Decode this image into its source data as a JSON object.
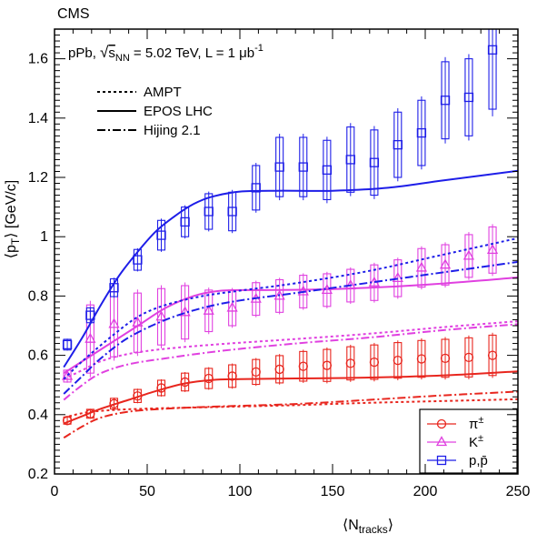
{
  "chart_data": {
    "type": "scatter",
    "experiment": "CMS",
    "header_prefix": "pPb, ",
    "header_sqrt": "√",
    "header_s": "s",
    "header_sub": "NN",
    "header_rest": " = 5.02 TeV, L = 1 μb",
    "header_sup": "-1",
    "xlabel": {
      "pre": "⟨N",
      "sub": "tracks",
      "post": "⟩"
    },
    "ylabel": {
      "pre": "⟨p",
      "sub": "T",
      "post": "⟩ [GeV/c]"
    },
    "xlim": [
      0,
      250
    ],
    "ylim": [
      0.2,
      1.7
    ],
    "xticks": [
      0,
      50,
      100,
      150,
      200,
      250
    ],
    "xtick_labels": [
      "0",
      "50",
      "100",
      "150",
      "200",
      "250"
    ],
    "yticks": [
      0.2,
      0.4,
      0.6,
      0.8,
      1.0,
      1.2,
      1.4,
      1.6
    ],
    "ytick_labels": [
      "0.2",
      "0.4",
      "0.6",
      "0.8",
      "1",
      "1.2",
      "1.4",
      "1.6"
    ],
    "x": [
      6.9,
      19.3,
      32.1,
      44.8,
      57.6,
      70.4,
      83.2,
      95.9,
      108.7,
      121.4,
      134.2,
      147.0,
      159.7,
      172.5,
      185.2,
      198.0,
      210.8,
      223.5,
      236.3
    ],
    "model_legend": [
      {
        "label": "AMPT",
        "style": "dotted"
      },
      {
        "label": "EPOS LHC",
        "style": "solid"
      },
      {
        "label": "Hijing 2.1",
        "style": "dashdot"
      }
    ],
    "series": [
      {
        "name": "π",
        "name_sup": "±",
        "color": "#e8261e",
        "marker": "circle",
        "values": [
          0.38,
          0.403,
          0.437,
          0.463,
          0.49,
          0.51,
          0.522,
          0.53,
          0.544,
          0.553,
          0.563,
          0.566,
          0.573,
          0.577,
          0.583,
          0.588,
          0.59,
          0.593,
          0.6
        ],
        "syst": [
          0.012,
          0.015,
          0.018,
          0.022,
          0.026,
          0.03,
          0.034,
          0.038,
          0.042,
          0.046,
          0.05,
          0.054,
          0.056,
          0.058,
          0.06,
          0.062,
          0.064,
          0.066,
          0.068
        ],
        "models": {
          "AMPT": [
            [
              5,
              0.39
            ],
            [
              15,
              0.405
            ],
            [
              25,
              0.413
            ],
            [
              40,
              0.418
            ],
            [
              60,
              0.422
            ],
            [
              90,
              0.426
            ],
            [
              130,
              0.432
            ],
            [
              170,
              0.44
            ],
            [
              210,
              0.446
            ],
            [
              250,
              0.452
            ]
          ],
          "EPOS LHC": [
            [
              5,
              0.37
            ],
            [
              15,
              0.395
            ],
            [
              25,
              0.42
            ],
            [
              40,
              0.45
            ],
            [
              55,
              0.48
            ],
            [
              70,
              0.505
            ],
            [
              85,
              0.517
            ],
            [
              100,
              0.52
            ],
            [
              130,
              0.522
            ],
            [
              160,
              0.524
            ],
            [
              190,
              0.528
            ],
            [
              220,
              0.535
            ],
            [
              250,
              0.546
            ]
          ],
          "Hijing 2.1": [
            [
              5,
              0.322
            ],
            [
              15,
              0.36
            ],
            [
              25,
              0.39
            ],
            [
              40,
              0.41
            ],
            [
              60,
              0.42
            ],
            [
              90,
              0.428
            ],
            [
              130,
              0.436
            ],
            [
              170,
              0.45
            ],
            [
              210,
              0.465
            ],
            [
              250,
              0.478
            ]
          ]
        }
      },
      {
        "name": "K",
        "name_sup": "±",
        "color": "#e040e0",
        "marker": "triangle",
        "values": [
          0.53,
          0.655,
          0.705,
          0.71,
          0.73,
          0.745,
          0.75,
          0.76,
          0.79,
          0.8,
          0.815,
          0.82,
          0.835,
          0.845,
          0.86,
          0.895,
          0.905,
          0.935,
          0.955
        ],
        "syst": [
          0.02,
          0.115,
          0.11,
          0.1,
          0.095,
          0.09,
          0.07,
          0.06,
          0.055,
          0.055,
          0.055,
          0.055,
          0.055,
          0.06,
          0.062,
          0.065,
          0.068,
          0.072,
          0.078
        ],
        "models": {
          "AMPT": [
            [
              5,
              0.52
            ],
            [
              15,
              0.55
            ],
            [
              25,
              0.58
            ],
            [
              40,
              0.605
            ],
            [
              60,
              0.622
            ],
            [
              90,
              0.638
            ],
            [
              130,
              0.655
            ],
            [
              170,
              0.673
            ],
            [
              210,
              0.695
            ],
            [
              250,
              0.715
            ]
          ],
          "EPOS LHC": [
            [
              5,
              0.54
            ],
            [
              15,
              0.58
            ],
            [
              30,
              0.64
            ],
            [
              45,
              0.7
            ],
            [
              60,
              0.76
            ],
            [
              75,
              0.8
            ],
            [
              90,
              0.818
            ],
            [
              110,
              0.82
            ],
            [
              140,
              0.822
            ],
            [
              170,
              0.828
            ],
            [
              200,
              0.838
            ],
            [
              230,
              0.852
            ],
            [
              250,
              0.863
            ]
          ],
          "Hijing 2.1": [
            [
              5,
              0.45
            ],
            [
              15,
              0.5
            ],
            [
              25,
              0.54
            ],
            [
              40,
              0.57
            ],
            [
              60,
              0.59
            ],
            [
              90,
              0.615
            ],
            [
              130,
              0.64
            ],
            [
              170,
              0.66
            ],
            [
              210,
              0.685
            ],
            [
              250,
              0.705
            ]
          ]
        }
      },
      {
        "name": "p,p̄",
        "name_sup": "",
        "color": "#1e1ee8",
        "marker": "square",
        "values": [
          0.636,
          0.735,
          0.828,
          0.922,
          1.005,
          1.05,
          1.085,
          1.085,
          1.165,
          1.235,
          1.235,
          1.225,
          1.26,
          1.25,
          1.31,
          1.35,
          1.46,
          1.47,
          1.63
        ],
        "syst": [
          0.018,
          0.025,
          0.03,
          0.035,
          0.05,
          0.05,
          0.06,
          0.065,
          0.075,
          0.1,
          0.1,
          0.1,
          0.11,
          0.11,
          0.11,
          0.11,
          0.13,
          0.13,
          0.2
        ],
        "models": {
          "AMPT": [
            [
              5,
              0.52
            ],
            [
              15,
              0.58
            ],
            [
              30,
              0.66
            ],
            [
              45,
              0.73
            ],
            [
              60,
              0.77
            ],
            [
              80,
              0.8
            ],
            [
              100,
              0.818
            ],
            [
              130,
              0.843
            ],
            [
              170,
              0.885
            ],
            [
              210,
              0.94
            ],
            [
              250,
              0.995
            ]
          ],
          "EPOS LHC": [
            [
              5,
              0.56
            ],
            [
              15,
              0.66
            ],
            [
              25,
              0.77
            ],
            [
              35,
              0.87
            ],
            [
              45,
              0.95
            ],
            [
              55,
              1.02
            ],
            [
              65,
              1.07
            ],
            [
              75,
              1.11
            ],
            [
              85,
              1.135
            ],
            [
              100,
              1.152
            ],
            [
              120,
              1.155
            ],
            [
              150,
              1.155
            ],
            [
              180,
              1.165
            ],
            [
              210,
              1.19
            ],
            [
              250,
              1.222
            ]
          ],
          "Hijing 2.1": [
            [
              5,
              0.47
            ],
            [
              15,
              0.53
            ],
            [
              25,
              0.59
            ],
            [
              40,
              0.66
            ],
            [
              60,
              0.72
            ],
            [
              80,
              0.76
            ],
            [
              100,
              0.785
            ],
            [
              130,
              0.81
            ],
            [
              170,
              0.845
            ],
            [
              210,
              0.88
            ],
            [
              250,
              0.915
            ]
          ]
        }
      }
    ],
    "legend_position": "bottom-right",
    "grid": false
  }
}
